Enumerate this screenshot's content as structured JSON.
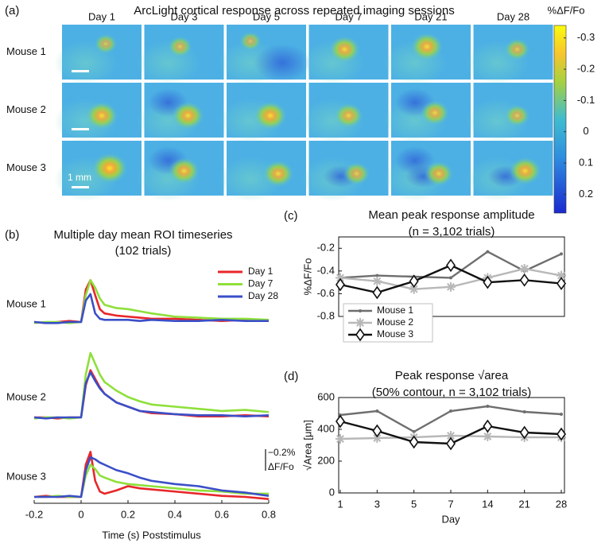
{
  "chart_data": [
    {
      "type": "heatmap",
      "panel_label": "(a)",
      "title": "ArcLight cortical response across repeated imaging sessions",
      "columns": [
        "Day 1",
        "Day 3",
        "Day 5",
        "Day 7",
        "Day 21",
        "Day 28"
      ],
      "rows": [
        "Mouse 1",
        "Mouse 2",
        "Mouse 3"
      ],
      "colorbar": {
        "label": "%ΔF/Fo",
        "lim": [
          -0.34,
          0.26
        ],
        "ticks": [
          -0.3,
          -0.2,
          -0.1,
          0,
          0.1,
          0.2
        ]
      },
      "scale_bar_label": "1 mm"
    },
    {
      "type": "line",
      "panel_label": "(b)",
      "title": "Multiple day mean ROI timeseries",
      "subtitle": "(102 trials)",
      "xlabel": "Time (s) Poststimulus",
      "x": [
        -0.2,
        -0.15,
        -0.1,
        -0.05,
        0,
        0.02,
        0.04,
        0.06,
        0.08,
        0.1,
        0.15,
        0.2,
        0.25,
        0.3,
        0.4,
        0.5,
        0.6,
        0.7,
        0.8
      ],
      "xlim": [
        -0.2,
        0.8
      ],
      "xticks": [
        -0.2,
        0,
        0.2,
        0.4,
        0.6,
        0.8
      ],
      "ylim": [
        0.1,
        -0.7
      ],
      "panels": [
        "Mouse 1",
        "Mouse 2",
        "Mouse 3"
      ],
      "series": [
        {
          "name": "Day 1",
          "color": "#e8262a",
          "values": [
            [
              0,
              0.01,
              0,
              -0.01,
              0,
              -0.3,
              -0.39,
              -0.25,
              -0.12,
              -0.08,
              -0.06,
              -0.05,
              -0.04,
              -0.03,
              -0.03,
              -0.02,
              -0.01,
              -0.02,
              -0.01
            ],
            [
              0,
              0,
              0.01,
              0,
              0,
              -0.3,
              -0.44,
              -0.36,
              -0.28,
              -0.22,
              -0.14,
              -0.1,
              -0.06,
              -0.04,
              -0.03,
              -0.01,
              -0.01,
              -0.02,
              -0.01
            ],
            [
              0,
              -0.01,
              0,
              0,
              0,
              -0.3,
              -0.42,
              -0.15,
              -0.05,
              -0.03,
              -0.06,
              -0.1,
              -0.08,
              -0.07,
              -0.05,
              -0.03,
              -0.01,
              0,
              0.02
            ]
          ]
        },
        {
          "name": "Day 7",
          "color": "#8ee03a",
          "values": [
            [
              0.01,
              0,
              0,
              0.01,
              0,
              -0.25,
              -0.39,
              -0.32,
              -0.22,
              -0.16,
              -0.13,
              -0.12,
              -0.1,
              -0.08,
              -0.05,
              -0.04,
              -0.03,
              -0.03,
              -0.02
            ],
            [
              0.01,
              0,
              0,
              0.01,
              0,
              -0.4,
              -0.6,
              -0.5,
              -0.4,
              -0.33,
              -0.25,
              -0.19,
              -0.15,
              -0.12,
              -0.1,
              -0.08,
              -0.06,
              -0.07,
              -0.05
            ],
            [
              0,
              0,
              -0.01,
              0,
              0,
              -0.2,
              -0.3,
              -0.26,
              -0.2,
              -0.18,
              -0.14,
              -0.12,
              -0.11,
              -0.1,
              -0.08,
              -0.06,
              -0.05,
              -0.03,
              -0.03
            ]
          ]
        },
        {
          "name": "Day 28",
          "color": "#3a4fc8",
          "values": [
            [
              0,
              0.01,
              0.01,
              0,
              0,
              -0.2,
              -0.26,
              -0.08,
              -0.03,
              -0.02,
              -0.02,
              -0.02,
              -0.01,
              -0.02,
              -0.01,
              -0.01,
              -0.02,
              -0.01,
              -0.01
            ],
            [
              0,
              0.01,
              0,
              0,
              0,
              -0.32,
              -0.42,
              -0.34,
              -0.27,
              -0.22,
              -0.14,
              -0.1,
              -0.06,
              -0.05,
              -0.03,
              -0.02,
              -0.02,
              -0.01,
              -0.02
            ],
            [
              0,
              0,
              0,
              -0.01,
              0,
              -0.25,
              -0.37,
              -0.35,
              -0.32,
              -0.3,
              -0.25,
              -0.22,
              -0.18,
              -0.15,
              -0.12,
              -0.1,
              -0.06,
              -0.04,
              -0.01
            ]
          ]
        }
      ],
      "scale_bar": {
        "value": -0.2,
        "label": "−0.2%",
        "unit": "ΔF/Fo"
      }
    },
    {
      "type": "line",
      "panel_label": "(c)",
      "title": "Mean peak response amplitude",
      "subtitle": "(n = 3,102 trials)",
      "ylabel": "%ΔF/Fo",
      "ylim": [
        -0.8,
        -0.1
      ],
      "yticks": [
        -0.8,
        -0.6,
        -0.4,
        -0.2
      ],
      "legend": "lower left",
      "series": [
        {
          "name": "Mouse 1",
          "color": "#6e6e6e",
          "marker": "dot",
          "values": [
            -0.46,
            -0.44,
            -0.45,
            -0.46,
            -0.23,
            -0.4,
            -0.25
          ]
        },
        {
          "name": "Mouse 2",
          "color": "#b8b8b8",
          "marker": "asterisk",
          "values": [
            -0.46,
            -0.49,
            -0.56,
            -0.54,
            -0.46,
            -0.38,
            -0.44
          ]
        },
        {
          "name": "Mouse 3",
          "color": "#111111",
          "marker": "diamond",
          "values": [
            -0.52,
            -0.59,
            -0.49,
            -0.35,
            -0.5,
            -0.48,
            -0.51
          ]
        }
      ]
    },
    {
      "type": "line",
      "panel_label": "(d)",
      "title": "Peak response √area",
      "subtitle": "(50% contour, n = 3,102 trials)",
      "ylabel": "√Area [μm]",
      "xlabel": "Day",
      "categories": [
        "1",
        "3",
        "5",
        "7",
        "14",
        "21",
        "28"
      ],
      "ylim": [
        0,
        600
      ],
      "yticks": [
        0,
        200,
        400,
        600
      ],
      "series": [
        {
          "color": "#6e6e6e",
          "marker": "dot",
          "values": [
            490,
            515,
            385,
            515,
            545,
            510,
            495
          ]
        },
        {
          "color": "#b8b8b8",
          "marker": "asterisk",
          "values": [
            340,
            345,
            350,
            360,
            355,
            350,
            350
          ]
        },
        {
          "color": "#111111",
          "marker": "diamond",
          "values": [
            450,
            390,
            320,
            310,
            420,
            380,
            370
          ]
        }
      ]
    }
  ]
}
